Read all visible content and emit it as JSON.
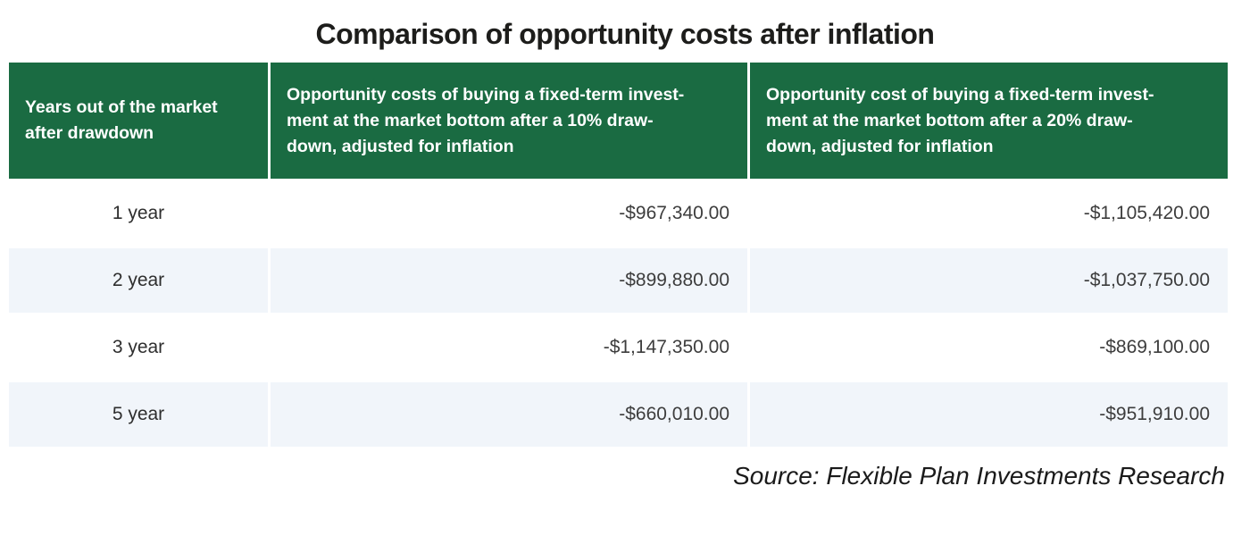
{
  "title": "Comparison of opportunity costs after inflation",
  "table": {
    "headers": {
      "years": "Years out of the market\nafter drawdown",
      "cost_10pct": "Opportunity costs of buying a fixed-term invest-\nment at the market bottom after a 10% draw-\ndown, adjusted for inflation",
      "cost_20pct": "Opportunity cost of buying a fixed-term invest-\nment at the market bottom after a 20% draw-\ndown, adjusted for inflation"
    },
    "rows": [
      {
        "years": "1 year",
        "cost_10pct": "-$967,340.00",
        "cost_20pct": "-$1,105,420.00"
      },
      {
        "years": "2 year",
        "cost_10pct": "-$899,880.00",
        "cost_20pct": "-$1,037,750.00"
      },
      {
        "years": "3 year",
        "cost_10pct": "-$1,147,350.00",
        "cost_20pct": "-$869,100.00"
      },
      {
        "years": "5 year",
        "cost_10pct": "-$660,010.00",
        "cost_20pct": "-$951,910.00"
      }
    ]
  },
  "source": "Source: Flexible Plan Investments Research",
  "colors": {
    "header_green": "#1a6b42",
    "alt_row": "#f1f5fa",
    "title_text": "#1d1d1b",
    "cell_text": "#3d3d3d"
  },
  "chart_data": {
    "type": "table",
    "title": "Comparison of opportunity costs after inflation",
    "categories": [
      "1 year",
      "2 year",
      "3 year",
      "5 year"
    ],
    "category_label": "Years out of the market after drawdown",
    "series": [
      {
        "name": "Opportunity costs of buying a fixed-term investment at the market bottom after a 10% drawdown, adjusted for inflation",
        "values": [
          -967340.0,
          -899880.0,
          -1147350.0,
          -660010.0
        ]
      },
      {
        "name": "Opportunity cost of buying a fixed-term investment at the market bottom after a 20% drawdown, adjusted for inflation",
        "values": [
          -1105420.0,
          -1037750.0,
          -869100.0,
          -951910.0
        ]
      }
    ],
    "value_format": "USD, negative, two decimals",
    "source": "Source: Flexible Plan Investments Research"
  }
}
